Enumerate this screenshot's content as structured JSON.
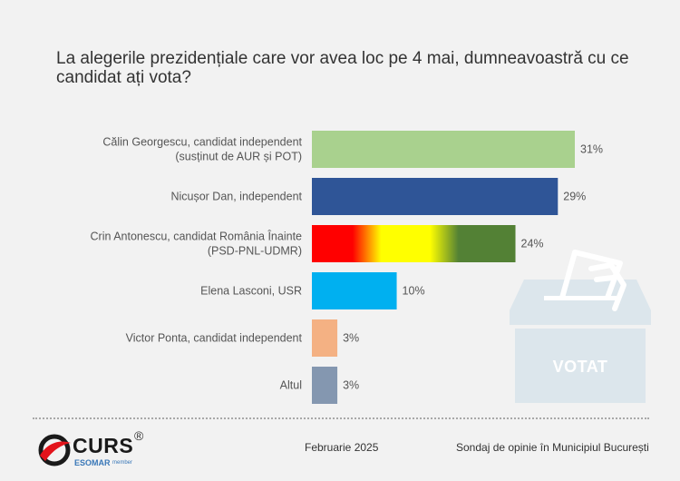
{
  "title": "La alegerile prezidențiale care vor avea loc pe 4 mai, dumneavoastră cu ce candidat ați vota?",
  "chart_data": {
    "type": "bar",
    "orientation": "horizontal",
    "categories": [
      [
        "Călin Georgescu, candidat independent",
        "(susținut de AUR și POT)"
      ],
      [
        "Nicușor Dan, independent"
      ],
      [
        "Crin Antonescu, candidat România Înainte",
        "(PSD-PNL-UDMR)"
      ],
      [
        "Elena Lasconi, USR"
      ],
      [
        "Victor Ponta, candidat independent"
      ],
      [
        "Altul"
      ]
    ],
    "values": [
      31,
      29,
      24,
      10,
      3,
      3
    ],
    "value_labels": [
      "31%",
      "29%",
      "24%",
      "10%",
      "3%",
      "3%"
    ],
    "colors": [
      "#a9d18e",
      "#2f5597",
      "gradient-red-yellow-green",
      "#00b0f0",
      "#f4b183",
      "#8497b0"
    ],
    "xlim": [
      0,
      33
    ],
    "grid": false,
    "legend": "none"
  },
  "ballot": {
    "text": "VOTAT",
    "icon": "ballot-box-icon"
  },
  "footer": {
    "date": "Februarie 2025",
    "source": "Sondaj de opinie în Municipiul București",
    "logo": {
      "name": "CURS",
      "reg": "®",
      "esomar": "ESOMAR",
      "member": "member"
    }
  }
}
